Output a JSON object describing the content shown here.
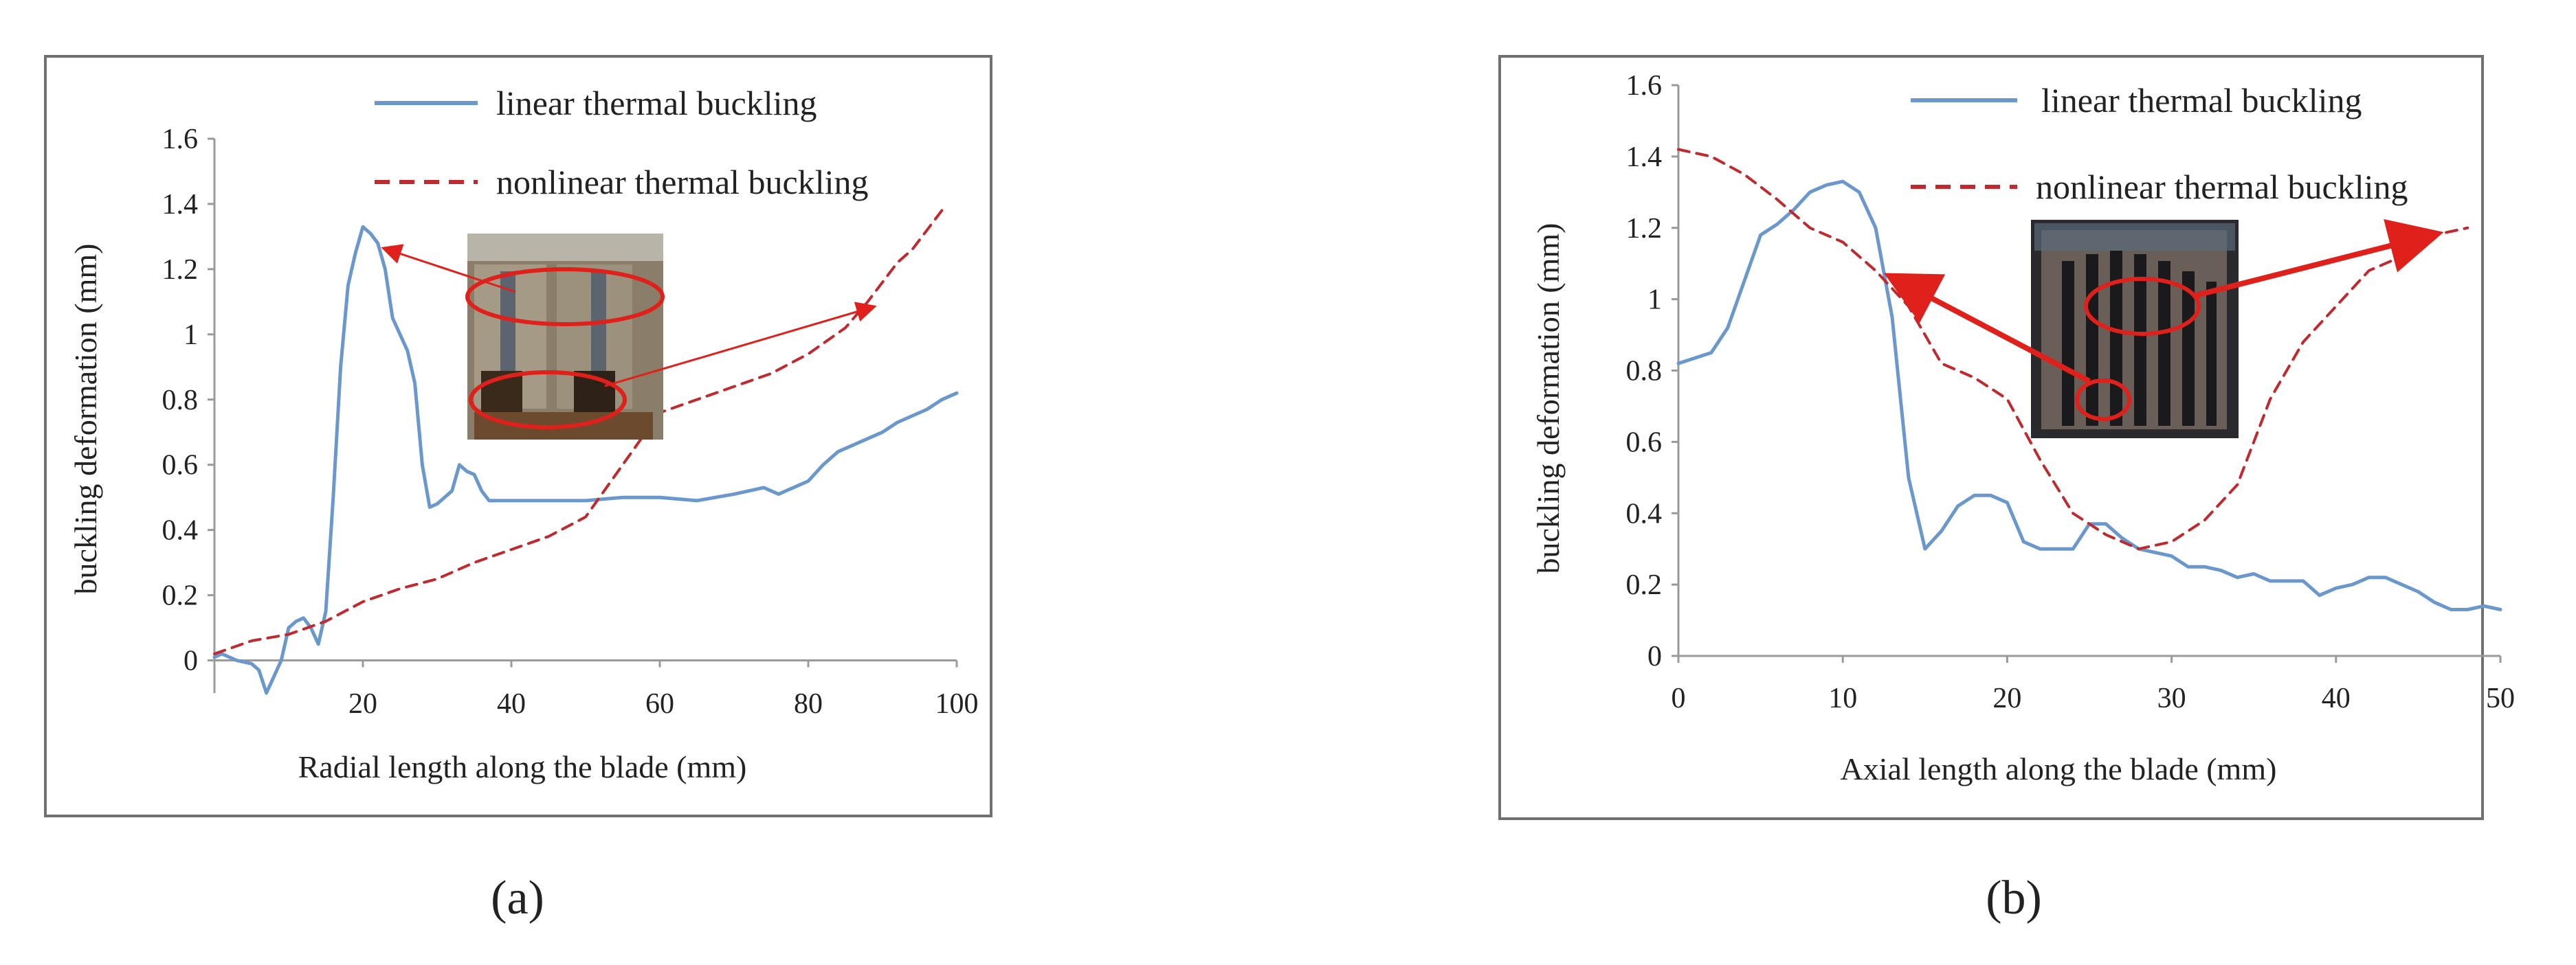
{
  "colors": {
    "linear": "#6a97cc",
    "nonlinear": "#c0292e",
    "arrow": "#e0201a",
    "frame": "#707070"
  },
  "chart_data": [
    {
      "type": "line",
      "caption": "(a)",
      "xlabel": "Radial length along  the blade  (mm)",
      "ylabel": "buckling deformation (mm)",
      "xlim": [
        0,
        100
      ],
      "ylim": [
        -0.1,
        1.6
      ],
      "xticks": [
        20,
        40,
        60,
        80,
        100
      ],
      "yticks": [
        0,
        0.2,
        0.4,
        0.6,
        0.8,
        1,
        1.2,
        1.4,
        1.6
      ],
      "ytick_labels": [
        "0",
        "0.2",
        "0.4",
        "0.6",
        "0.8",
        "1",
        "1.2",
        "1.4",
        "1.6"
      ],
      "legend_position": "top-right",
      "inset": "blade photo",
      "series": [
        {
          "name": "linear thermal buckling",
          "style": "solid",
          "x": [
            0,
            1,
            3,
            5,
            6,
            7,
            8,
            9,
            10,
            11,
            12,
            13,
            14,
            15,
            16,
            17,
            18,
            19,
            20,
            21,
            22,
            23,
            24,
            25,
            26,
            27,
            28,
            29,
            30,
            31,
            32,
            33,
            34,
            35,
            36,
            37,
            38,
            40,
            45,
            50,
            55,
            60,
            65,
            70,
            72,
            74,
            76,
            78,
            80,
            82,
            84,
            86,
            88,
            90,
            92,
            94,
            96,
            98,
            100
          ],
          "y": [
            0.01,
            0.02,
            0.0,
            -0.01,
            -0.03,
            -0.1,
            -0.05,
            0.0,
            0.1,
            0.12,
            0.13,
            0.1,
            0.05,
            0.15,
            0.5,
            0.9,
            1.15,
            1.25,
            1.33,
            1.31,
            1.28,
            1.2,
            1.05,
            1.0,
            0.95,
            0.85,
            0.6,
            0.47,
            0.48,
            0.5,
            0.52,
            0.6,
            0.58,
            0.57,
            0.52,
            0.49,
            0.49,
            0.49,
            0.49,
            0.49,
            0.5,
            0.5,
            0.49,
            0.51,
            0.52,
            0.53,
            0.51,
            0.53,
            0.55,
            0.6,
            0.64,
            0.66,
            0.68,
            0.7,
            0.73,
            0.75,
            0.77,
            0.8,
            0.82
          ]
        },
        {
          "name": "nonlinear thermal buckling",
          "style": "dashed",
          "x": [
            0,
            5,
            10,
            15,
            20,
            25,
            30,
            35,
            40,
            45,
            50,
            55,
            60,
            65,
            70,
            75,
            80,
            85,
            88,
            90,
            92,
            94,
            96,
            98
          ],
          "y": [
            0.02,
            0.06,
            0.08,
            0.12,
            0.18,
            0.22,
            0.25,
            0.3,
            0.34,
            0.38,
            0.44,
            0.6,
            0.76,
            0.8,
            0.84,
            0.88,
            0.94,
            1.02,
            1.1,
            1.16,
            1.22,
            1.26,
            1.32,
            1.38
          ]
        }
      ]
    },
    {
      "type": "line",
      "caption": "(b)",
      "xlabel": "Axial length along the  blade  (mm)",
      "ylabel": "buckling deformation (mm)",
      "xlim": [
        0,
        50
      ],
      "ylim": [
        0,
        1.6
      ],
      "xticks": [
        0,
        10,
        20,
        30,
        40,
        50
      ],
      "yticks": [
        0,
        0.2,
        0.4,
        0.6,
        0.8,
        1,
        1.2,
        1.4,
        1.6
      ],
      "ytick_labels": [
        "0",
        "0.2",
        "0.4",
        "0.6",
        "0.8",
        "1",
        "1.2",
        "1.4",
        "1.6"
      ],
      "legend_position": "top-right",
      "inset": "blade photo",
      "series": [
        {
          "name": "linear thermal buckling",
          "style": "solid",
          "x": [
            0,
            2,
            3,
            4,
            5,
            6,
            7,
            8,
            9,
            10,
            11,
            12,
            13,
            14,
            15,
            16,
            17,
            18,
            19,
            20,
            21,
            22,
            24,
            25,
            26,
            27,
            28,
            29,
            30,
            31,
            32,
            33,
            34,
            35,
            36,
            37,
            38,
            39,
            40,
            41,
            42,
            43,
            44,
            45,
            46,
            47,
            48,
            49,
            50
          ],
          "y": [
            0.82,
            0.85,
            0.92,
            1.05,
            1.18,
            1.21,
            1.25,
            1.3,
            1.32,
            1.33,
            1.3,
            1.2,
            0.95,
            0.5,
            0.3,
            0.35,
            0.42,
            0.45,
            0.45,
            0.43,
            0.32,
            0.3,
            0.3,
            0.37,
            0.37,
            0.33,
            0.3,
            0.29,
            0.28,
            0.25,
            0.25,
            0.24,
            0.22,
            0.23,
            0.21,
            0.21,
            0.21,
            0.17,
            0.19,
            0.2,
            0.22,
            0.22,
            0.2,
            0.18,
            0.15,
            0.13,
            0.13,
            0.14,
            0.13
          ]
        },
        {
          "name": "nonlinear thermal buckling",
          "style": "dashed",
          "x": [
            0,
            2,
            4,
            6,
            8,
            10,
            12,
            14,
            16,
            18,
            20,
            22,
            24,
            26,
            28,
            30,
            32,
            34,
            36,
            38,
            40,
            42,
            44,
            46,
            48
          ],
          "y": [
            1.42,
            1.4,
            1.35,
            1.28,
            1.2,
            1.16,
            1.08,
            0.98,
            0.82,
            0.78,
            0.72,
            0.55,
            0.4,
            0.34,
            0.3,
            0.32,
            0.38,
            0.48,
            0.72,
            0.88,
            0.98,
            1.08,
            1.12,
            1.18,
            1.2
          ]
        }
      ]
    }
  ]
}
